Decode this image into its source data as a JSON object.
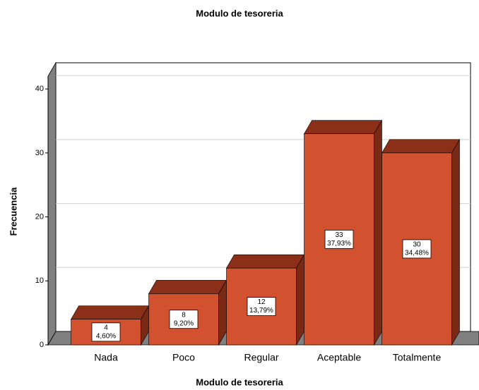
{
  "chart_data": {
    "type": "bar3d",
    "title": "Modulo de tesoreria",
    "x_label": "Modulo de tesoreria",
    "y_label": "Frecuencia",
    "categories": [
      "Nada",
      "Poco",
      "Regular",
      "Aceptable",
      "Totalmente"
    ],
    "values": [
      4,
      8,
      12,
      33,
      30
    ],
    "percentages": [
      4.6,
      9.2,
      13.79,
      37.93,
      34.48
    ],
    "percentage_labels": [
      "4,60%",
      "9,20%",
      "13,79%",
      "37,93%",
      "34,48%"
    ],
    "color": "#d2512f",
    "ylim": [
      0,
      42
    ],
    "yticks": [
      0,
      10,
      20,
      30,
      40
    ],
    "grid": true
  }
}
